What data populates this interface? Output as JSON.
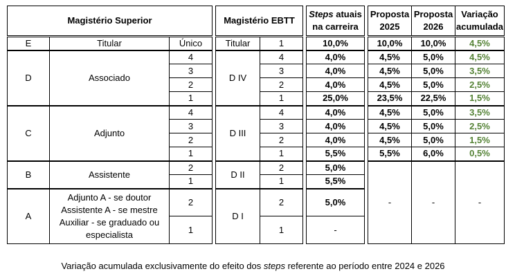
{
  "headers": {
    "superior": "Magistério Superior",
    "ebtt": "Magistério EBTT",
    "steps_em": "Steps",
    "steps_rest": " atuais",
    "steps_line2": "na carreira",
    "p2025_l1": "Proposta",
    "p2025_l2": "2025",
    "p2026_l1": "Proposta",
    "p2026_l2": "2026",
    "var_l1": "Variação",
    "var_l2": "acumulada"
  },
  "rows": {
    "E": {
      "classe": "E",
      "cargo": "Titular",
      "nivel": "Único",
      "ebtt_classe": "Titular",
      "ebtt_nivel": "1",
      "steps": "10,0%",
      "p2025": "10,0%",
      "p2026": "10,0%",
      "var": "4,5%"
    },
    "D": {
      "classe": "D",
      "cargo": "Associado",
      "ebtt_classe": "D IV",
      "levels": [
        {
          "nivel": "4",
          "ebtt_nivel": "4",
          "steps": "4,0%",
          "p2025": "4,5%",
          "p2026": "5,0%",
          "var": "4,5%"
        },
        {
          "nivel": "3",
          "ebtt_nivel": "3",
          "steps": "4,0%",
          "p2025": "4,5%",
          "p2026": "5,0%",
          "var": "3,5%"
        },
        {
          "nivel": "2",
          "ebtt_nivel": "2",
          "steps": "4,0%",
          "p2025": "4,5%",
          "p2026": "5,0%",
          "var": "2,5%"
        },
        {
          "nivel": "1",
          "ebtt_nivel": "1",
          "steps": "25,0%",
          "p2025": "23,5%",
          "p2026": "22,5%",
          "var": "1,5%"
        }
      ]
    },
    "C": {
      "classe": "C",
      "cargo": "Adjunto",
      "ebtt_classe": "D III",
      "levels": [
        {
          "nivel": "4",
          "ebtt_nivel": "4",
          "steps": "4,0%",
          "p2025": "4,5%",
          "p2026": "5,0%",
          "var": "3,5%"
        },
        {
          "nivel": "3",
          "ebtt_nivel": "3",
          "steps": "4,0%",
          "p2025": "4,5%",
          "p2026": "5,0%",
          "var": "2,5%"
        },
        {
          "nivel": "2",
          "ebtt_nivel": "2",
          "steps": "4,0%",
          "p2025": "4,5%",
          "p2026": "5,0%",
          "var": "1,5%"
        },
        {
          "nivel": "1",
          "ebtt_nivel": "1",
          "steps": "5,5%",
          "p2025": "5,5%",
          "p2026": "6,0%",
          "var": "0,5%"
        }
      ]
    },
    "B": {
      "classe": "B",
      "cargo": "Assistente",
      "ebtt_classe": "D II",
      "levels": [
        {
          "nivel": "2",
          "ebtt_nivel": "2",
          "steps": "5,0%"
        },
        {
          "nivel": "1",
          "ebtt_nivel": "1",
          "steps": "5,5%"
        }
      ]
    },
    "A": {
      "classe": "A",
      "cargo_l1": "Adjunto A - se doutor",
      "cargo_l2": "Assistente A - se mestre",
      "cargo_l3": "Auxiliar - se graduado ou",
      "cargo_l4": "especialista",
      "ebtt_classe": "D I",
      "levels": [
        {
          "nivel": "2",
          "ebtt_nivel": "2",
          "steps": "5,0%"
        },
        {
          "nivel": "1",
          "ebtt_nivel": "1",
          "steps": "-"
        }
      ]
    },
    "BA_dash": {
      "p2025": "-",
      "p2026": "-",
      "var": "-"
    }
  },
  "caption": {
    "pre": "Variação acumulada exclusivamente do efeito dos ",
    "em": "steps",
    "post": " referente ao período entre 2024 e 2026"
  },
  "colors": {
    "variation": "#548235"
  }
}
